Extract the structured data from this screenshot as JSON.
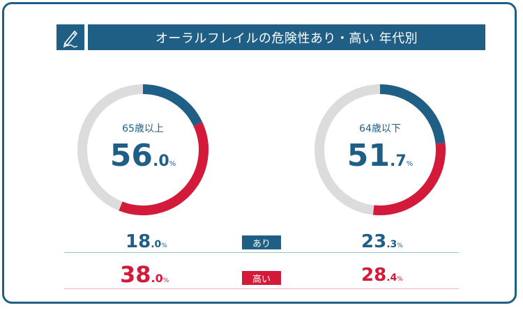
{
  "title": "オーラルフレイルの危険性あり・高い 年代別",
  "colors": {
    "blue": "#1f5f86",
    "red": "#d41a3a",
    "gray": "#dcdcdc"
  },
  "icon": "pen-writing-icon",
  "chart_data": [
    {
      "type": "pie",
      "label": "65歳以上",
      "total": {
        "int": "56",
        "dec": ".0",
        "pct": "%"
      },
      "segments": [
        {
          "name": "あり",
          "value": 18.0
        },
        {
          "name": "高い",
          "value": 38.0
        }
      ]
    },
    {
      "type": "pie",
      "label": "64歳以下",
      "total": {
        "int": "51",
        "dec": ".7",
        "pct": "%"
      },
      "segments": [
        {
          "name": "あり",
          "value": 23.3
        },
        {
          "name": "高い",
          "value": 28.4
        }
      ]
    }
  ],
  "rows": {
    "ari": {
      "label": "あり",
      "left": {
        "int": "18",
        "dec": ".0",
        "pct": "%"
      },
      "right": {
        "int": "23",
        "dec": ".3",
        "pct": "%"
      }
    },
    "takai": {
      "label": "高い",
      "left": {
        "int": "38",
        "dec": ".0",
        "pct": "%"
      },
      "right": {
        "int": "28",
        "dec": ".4",
        "pct": "%"
      }
    }
  }
}
